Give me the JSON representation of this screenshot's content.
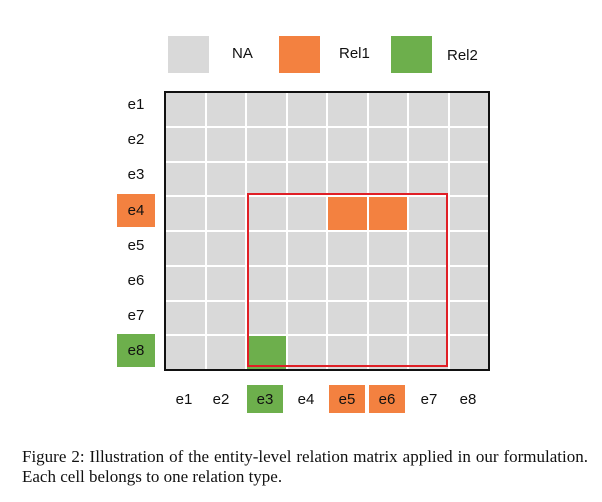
{
  "legend": [
    {
      "label": "NA",
      "color": "#d9d9d9"
    },
    {
      "label": "Rel1",
      "color": "#f38140"
    },
    {
      "label": "Rel2",
      "color": "#6daf4c"
    }
  ],
  "entities": [
    "e1",
    "e2",
    "e3",
    "e4",
    "e5",
    "e6",
    "e7",
    "e8"
  ],
  "highlighted_entities": {
    "row": {
      "e4": "Rel1",
      "e8": "Rel2"
    },
    "col": {
      "e3": "Rel2",
      "e5": "Rel1",
      "e6": "Rel1"
    }
  },
  "matrix": {
    "default_relation": "NA",
    "cells": [
      {
        "row": "e4",
        "col": "e5",
        "relation": "Rel1"
      },
      {
        "row": "e4",
        "col": "e6",
        "relation": "Rel1"
      },
      {
        "row": "e8",
        "col": "e3",
        "relation": "Rel2"
      }
    ],
    "highlight_region": {
      "rows": [
        "e4",
        "e8"
      ],
      "cols": [
        "e3",
        "e7"
      ],
      "color": "#e01f26"
    }
  },
  "caption": "Figure 2: Illustration of the entity-level relation matrix applied in our formulation. Each cell belongs to one relation type."
}
